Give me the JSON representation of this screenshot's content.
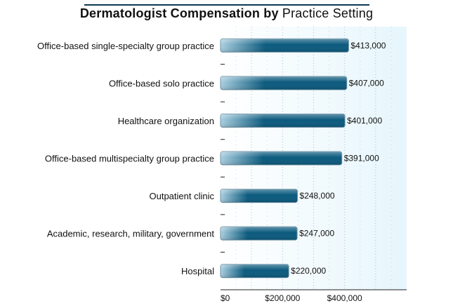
{
  "chart_data": {
    "type": "bar",
    "orientation": "horizontal",
    "title_bold": "Dermatologist Compensation by",
    "title_regular": "Practice Setting",
    "categories": [
      "Office-based single-specialty group practice",
      "Office-based solo practice",
      "Healthcare organization",
      "Office-based multispecialty group practice",
      "Outpatient clinic",
      "Academic, research, military, government",
      "Hospital"
    ],
    "values": [
      413000,
      407000,
      401000,
      391000,
      248000,
      247000,
      220000
    ],
    "value_labels": [
      "$413,000",
      "$407,000",
      "$401,000",
      "$391,000",
      "$248,000",
      "$247,000",
      "$220,000"
    ],
    "xlim": [
      0,
      600000
    ],
    "x_ticks": [
      0,
      200000,
      400000
    ],
    "x_tick_labels": [
      "$0",
      "$200,000",
      "$400,000"
    ],
    "grid": true,
    "legend": "none",
    "colors": {
      "bar_dark": "#0b5a7e",
      "bar_light": "#a9cfe0",
      "plot_bg_left": "#ffffff",
      "plot_bg_right": "#e6f6fc",
      "grid": "#a9b9c2"
    }
  }
}
